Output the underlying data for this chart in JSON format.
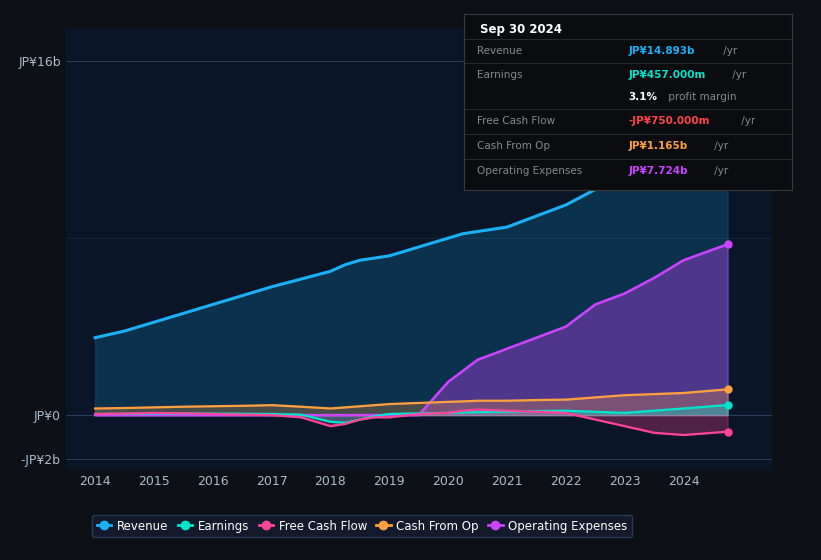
{
  "bg_color": "#0d1117",
  "plot_bg_color": "#0a1628",
  "grid_color": "#1e3050",
  "years": [
    2014,
    2014.5,
    2015,
    2015.5,
    2016,
    2016.5,
    2017,
    2017.5,
    2018,
    2018.25,
    2018.5,
    2018.75,
    2019,
    2019.5,
    2020,
    2020.25,
    2020.5,
    2021,
    2021.5,
    2022,
    2022.5,
    2023,
    2023.5,
    2024,
    2024.75
  ],
  "revenue": [
    3.5,
    3.8,
    4.2,
    4.6,
    5.0,
    5.4,
    5.8,
    6.15,
    6.5,
    6.8,
    7.0,
    7.1,
    7.2,
    7.6,
    8.0,
    8.2,
    8.3,
    8.5,
    9.0,
    9.5,
    10.2,
    11.0,
    12.2,
    13.5,
    14.893
  ],
  "earnings": [
    0.05,
    0.06,
    0.07,
    0.07,
    0.07,
    0.06,
    0.05,
    0.02,
    -0.3,
    -0.35,
    -0.2,
    -0.05,
    0.05,
    0.08,
    0.1,
    0.12,
    0.13,
    0.15,
    0.18,
    0.2,
    0.15,
    0.1,
    0.2,
    0.3,
    0.457
  ],
  "free_cash_flow": [
    0.05,
    0.07,
    0.1,
    0.08,
    0.05,
    0.02,
    0.0,
    -0.1,
    -0.5,
    -0.4,
    -0.2,
    -0.1,
    -0.1,
    0.05,
    0.1,
    0.2,
    0.25,
    0.2,
    0.15,
    0.1,
    -0.2,
    -0.5,
    -0.8,
    -0.9,
    -0.75
  ],
  "cash_from_op": [
    0.3,
    0.32,
    0.35,
    0.38,
    0.4,
    0.42,
    0.45,
    0.38,
    0.3,
    0.35,
    0.4,
    0.45,
    0.5,
    0.55,
    0.6,
    0.62,
    0.65,
    0.65,
    0.68,
    0.7,
    0.8,
    0.9,
    0.95,
    1.0,
    1.165
  ],
  "operating_expenses": [
    0.0,
    0.0,
    0.0,
    0.0,
    0.0,
    0.0,
    0.0,
    0.0,
    0.0,
    0.0,
    0.0,
    0.0,
    0.0,
    0.0,
    1.5,
    2.0,
    2.5,
    3.0,
    3.5,
    4.0,
    5.0,
    5.5,
    6.2,
    7.0,
    7.724
  ],
  "ylim": [
    -2.5,
    17.5
  ],
  "xlim": [
    2013.5,
    2025.5
  ],
  "yticks": [
    -2,
    0,
    16
  ],
  "ytick_labels": [
    "-JP¥2b",
    "JP¥0",
    "JP¥16b"
  ],
  "xticks": [
    2014,
    2015,
    2016,
    2017,
    2018,
    2019,
    2020,
    2021,
    2022,
    2023,
    2024
  ],
  "colors": {
    "revenue": "#1ab0f5",
    "earnings": "#00e5cc",
    "free_cash_flow": "#ff4499",
    "cash_from_op": "#ffa040",
    "operating_expenses": "#cc44ff"
  },
  "legend_items": [
    {
      "label": "Revenue",
      "color": "#1ab0f5"
    },
    {
      "label": "Earnings",
      "color": "#00e5cc"
    },
    {
      "label": "Free Cash Flow",
      "color": "#ff4499"
    },
    {
      "label": "Cash From Op",
      "color": "#ffa040"
    },
    {
      "label": "Operating Expenses",
      "color": "#cc44ff"
    }
  ],
  "info_box": {
    "date": "Sep 30 2024",
    "rows": [
      {
        "label": "Revenue",
        "value": "JP¥14.893b",
        "unit": " /yr",
        "value_color": "#1ab0f5"
      },
      {
        "label": "Earnings",
        "value": "JP¥457.000m",
        "unit": " /yr",
        "value_color": "#00e5cc"
      },
      {
        "label": "",
        "value": "3.1%",
        "unit": " profit margin",
        "value_color": "#ffffff"
      },
      {
        "label": "Free Cash Flow",
        "value": "-JP¥750.000m",
        "unit": " /yr",
        "value_color": "#ff4444"
      },
      {
        "label": "Cash From Op",
        "value": "JP¥1.165b",
        "unit": " /yr",
        "value_color": "#ffa040"
      },
      {
        "label": "Operating Expenses",
        "value": "JP¥7.724b",
        "unit": " /yr",
        "value_color": "#cc44ff"
      }
    ]
  }
}
